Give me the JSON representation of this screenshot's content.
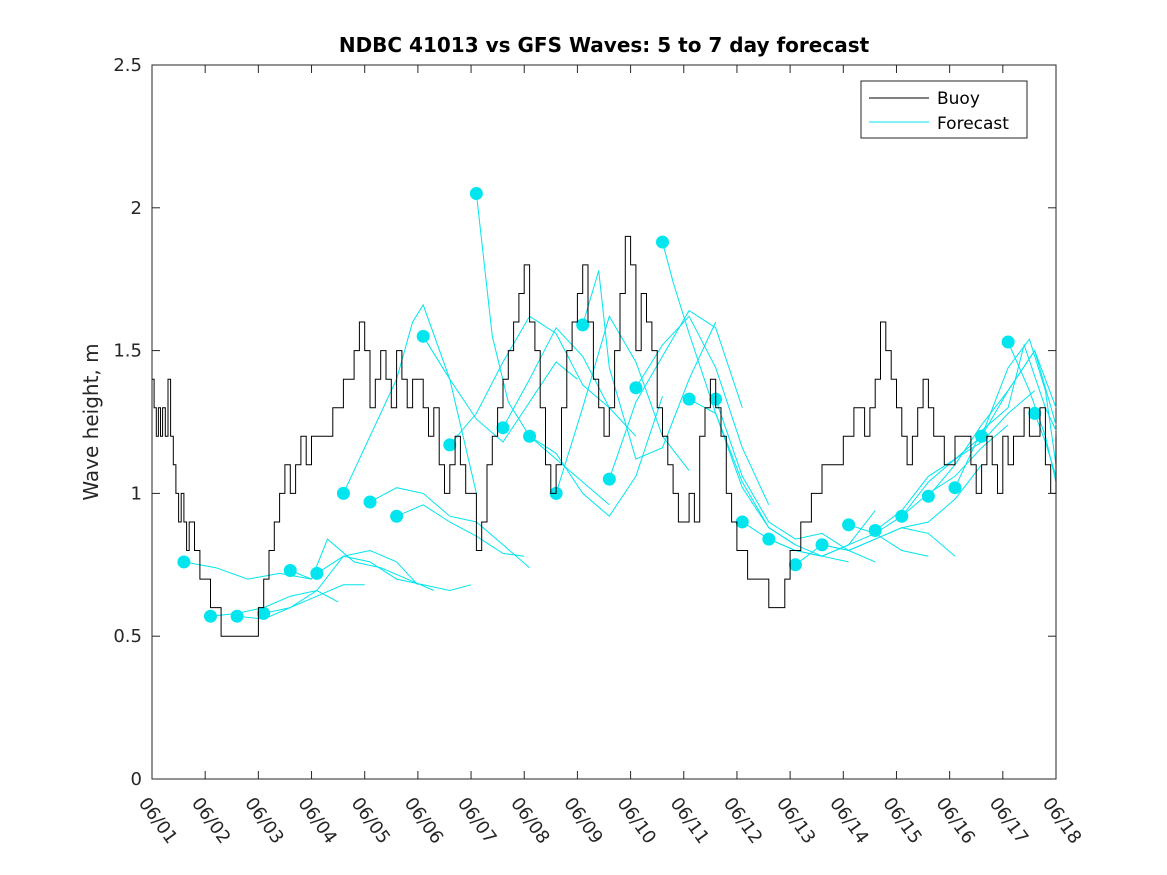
{
  "chart_data": {
    "type": "line",
    "title": "NDBC 41013 vs GFS Waves: 5 to 7 day forecast",
    "xlabel": "",
    "ylabel": "Wave height, m",
    "xlim": [
      0,
      17
    ],
    "ylim": [
      0,
      2.5
    ],
    "grid": false,
    "legend_position": "top-right",
    "x_ticks": [
      "06/01",
      "06/02",
      "06/03",
      "06/04",
      "06/05",
      "06/06",
      "06/07",
      "06/08",
      "06/09",
      "06/10",
      "06/11",
      "06/12",
      "06/13",
      "06/14",
      "06/15",
      "06/16",
      "06/17",
      "06/18"
    ],
    "y_ticks": [
      "0",
      "0.5",
      "1",
      "1.5",
      "2",
      "2.5"
    ],
    "y_tick_values": [
      0,
      0.5,
      1,
      1.5,
      2,
      2.5
    ],
    "colors": {
      "buoy": "#000000",
      "forecast": "#00e5ee"
    },
    "series": [
      {
        "name": "Buoy",
        "kind": "observed",
        "x": [
          0.0,
          0.04,
          0.08,
          0.12,
          0.16,
          0.2,
          0.25,
          0.3,
          0.35,
          0.4,
          0.45,
          0.5,
          0.55,
          0.6,
          0.65,
          0.7,
          0.8,
          0.9,
          1.0,
          1.1,
          1.2,
          1.3,
          1.4,
          1.5,
          1.6,
          1.7,
          1.8,
          1.9,
          2.0,
          2.1,
          2.2,
          2.3,
          2.4,
          2.5,
          2.6,
          2.7,
          2.8,
          2.9,
          3.0,
          3.2,
          3.4,
          3.6,
          3.8,
          3.9,
          4.0,
          4.1,
          4.2,
          4.3,
          4.4,
          4.5,
          4.6,
          4.7,
          4.8,
          4.9,
          5.0,
          5.1,
          5.2,
          5.3,
          5.4,
          5.5,
          5.6,
          5.7,
          5.8,
          5.9,
          6.0,
          6.1,
          6.2,
          6.3,
          6.4,
          6.5,
          6.6,
          6.7,
          6.8,
          6.9,
          7.0,
          7.1,
          7.2,
          7.3,
          7.4,
          7.5,
          7.6,
          7.7,
          7.8,
          7.9,
          8.0,
          8.1,
          8.2,
          8.3,
          8.4,
          8.5,
          8.6,
          8.7,
          8.8,
          8.9,
          9.0,
          9.1,
          9.2,
          9.3,
          9.4,
          9.5,
          9.6,
          9.7,
          9.8,
          9.9,
          10.0,
          10.1,
          10.2,
          10.3,
          10.4,
          10.5,
          10.6,
          10.7,
          10.8,
          10.9,
          11.0,
          11.1,
          11.2,
          11.3,
          11.4,
          11.5,
          11.6,
          11.7,
          11.8,
          11.9,
          12.0,
          12.2,
          12.4,
          12.6,
          12.8,
          13.0,
          13.2,
          13.4,
          13.5,
          13.6,
          13.7,
          13.8,
          13.9,
          14.0,
          14.1,
          14.2,
          14.3,
          14.4,
          14.5,
          14.6,
          14.7,
          14.8,
          14.9,
          15.0,
          15.1,
          15.2,
          15.3,
          15.4,
          15.5,
          15.6,
          15.7,
          15.8,
          15.9,
          16.0,
          16.1,
          16.2,
          16.3,
          16.4,
          16.5,
          16.6,
          16.7,
          16.8,
          16.9,
          17.0
        ],
        "values": [
          1.4,
          1.3,
          1.2,
          1.3,
          1.2,
          1.3,
          1.2,
          1.4,
          1.2,
          1.1,
          1.0,
          0.9,
          1.0,
          0.9,
          0.8,
          0.9,
          0.8,
          0.7,
          0.7,
          0.6,
          0.6,
          0.5,
          0.5,
          0.5,
          0.5,
          0.5,
          0.5,
          0.5,
          0.6,
          0.7,
          0.8,
          0.9,
          1.0,
          1.1,
          1.0,
          1.1,
          1.2,
          1.1,
          1.2,
          1.2,
          1.3,
          1.4,
          1.5,
          1.6,
          1.5,
          1.3,
          1.4,
          1.5,
          1.4,
          1.3,
          1.5,
          1.4,
          1.3,
          1.4,
          1.4,
          1.3,
          1.2,
          1.3,
          1.1,
          1.0,
          1.1,
          1.2,
          1.1,
          1.0,
          1.0,
          0.8,
          0.9,
          1.1,
          1.2,
          1.3,
          1.4,
          1.5,
          1.6,
          1.7,
          1.8,
          1.6,
          1.5,
          1.3,
          1.1,
          1.0,
          1.1,
          1.3,
          1.5,
          1.6,
          1.7,
          1.8,
          1.6,
          1.4,
          1.3,
          1.2,
          1.3,
          1.5,
          1.7,
          1.9,
          1.8,
          1.5,
          1.7,
          1.6,
          1.5,
          1.3,
          1.2,
          1.1,
          1.0,
          0.9,
          0.9,
          1.0,
          0.9,
          1.2,
          1.3,
          1.4,
          1.3,
          1.2,
          1.0,
          0.9,
          0.8,
          0.8,
          0.7,
          0.7,
          0.7,
          0.7,
          0.6,
          0.6,
          0.6,
          0.7,
          0.8,
          0.9,
          1.0,
          1.1,
          1.1,
          1.2,
          1.3,
          1.2,
          1.3,
          1.4,
          1.6,
          1.5,
          1.4,
          1.3,
          1.2,
          1.1,
          1.2,
          1.3,
          1.4,
          1.3,
          1.2,
          1.2,
          1.1,
          1.1,
          1.2,
          1.2,
          1.2,
          1.1,
          1.0,
          1.1,
          1.2,
          1.1,
          1.0,
          1.2,
          1.1,
          1.2,
          1.2,
          1.3,
          1.2,
          1.2,
          1.3,
          1.1,
          1.0,
          1.2
        ],
        "x_note_mirror": []
      }
    ],
    "forecast_runs": [
      {
        "x": [
          0.6,
          1.2,
          1.8,
          2.4,
          3.0
        ],
        "values": [
          0.76,
          0.74,
          0.7,
          0.72,
          0.7
        ]
      },
      {
        "x": [
          1.1,
          1.6,
          2.1,
          2.6,
          3.1,
          3.5
        ],
        "values": [
          0.57,
          0.58,
          0.6,
          0.64,
          0.66,
          0.62
        ]
      },
      {
        "x": [
          1.6,
          2.1,
          2.6,
          3.1,
          3.6,
          4.0
        ],
        "values": [
          0.57,
          0.56,
          0.6,
          0.64,
          0.68,
          0.68
        ]
      },
      {
        "x": [
          2.1,
          2.6,
          3.1,
          3.6,
          4.1,
          4.6,
          5.0
        ],
        "values": [
          0.58,
          0.6,
          0.66,
          0.78,
          0.8,
          0.76,
          0.68
        ]
      },
      {
        "x": [
          2.6,
          3.0,
          3.3,
          3.8,
          4.3,
          4.8,
          5.3
        ],
        "values": [
          0.73,
          0.7,
          0.84,
          0.76,
          0.74,
          0.7,
          0.66
        ]
      },
      {
        "x": [
          3.1,
          3.6,
          4.1,
          4.6,
          5.1,
          5.6,
          6.0
        ],
        "values": [
          0.72,
          0.78,
          0.76,
          0.7,
          0.68,
          0.66,
          0.68
        ]
      },
      {
        "x": [
          3.6,
          4.1,
          4.6,
          4.9,
          5.1,
          5.6,
          6.1
        ],
        "values": [
          1.0,
          1.2,
          1.4,
          1.6,
          1.66,
          1.4,
          1.0
        ]
      },
      {
        "x": [
          4.1,
          4.6,
          5.1,
          5.6,
          6.1,
          6.6,
          7.1
        ],
        "values": [
          0.97,
          1.02,
          1.0,
          0.92,
          0.9,
          0.82,
          0.74
        ]
      },
      {
        "x": [
          4.6,
          5.1,
          5.6,
          6.1,
          6.6,
          7.0
        ],
        "values": [
          0.92,
          0.96,
          0.9,
          0.85,
          0.79,
          0.78
        ]
      },
      {
        "x": [
          5.1,
          5.6,
          6.1,
          6.6,
          7.1,
          7.6,
          8.0
        ],
        "values": [
          1.55,
          1.4,
          1.26,
          1.18,
          1.32,
          1.46,
          1.4
        ]
      },
      {
        "x": [
          5.6,
          6.1,
          6.6,
          7.1,
          7.6,
          8.1,
          8.6
        ],
        "values": [
          1.17,
          1.28,
          1.46,
          1.62,
          1.56,
          1.38,
          1.3
        ]
      },
      {
        "x": [
          6.1,
          6.4,
          6.7,
          7.1,
          7.6,
          8.1,
          8.6
        ],
        "values": [
          2.05,
          1.55,
          1.32,
          1.2,
          1.12,
          1.04,
          0.96
        ]
      },
      {
        "x": [
          6.6,
          7.1,
          7.6,
          8.1,
          8.6,
          9.1
        ],
        "values": [
          1.23,
          1.4,
          1.58,
          1.48,
          1.3,
          1.2
        ]
      },
      {
        "x": [
          7.1,
          7.6,
          8.1,
          8.6,
          9.1,
          9.6
        ],
        "values": [
          1.2,
          1.14,
          1.0,
          0.92,
          1.06,
          1.34
        ]
      },
      {
        "x": [
          7.6,
          8.1,
          8.6,
          9.1,
          9.6,
          10.1
        ],
        "values": [
          1.0,
          1.3,
          1.62,
          1.46,
          1.2,
          1.08
        ]
      },
      {
        "x": [
          8.1,
          8.4,
          8.6,
          9.1,
          9.6,
          10.1,
          10.6
        ],
        "values": [
          1.59,
          1.78,
          1.44,
          1.12,
          1.16,
          1.4,
          1.6
        ]
      },
      {
        "x": [
          8.6,
          9.1,
          9.6,
          10.1,
          10.6,
          11.1
        ],
        "values": [
          1.05,
          1.32,
          1.48,
          1.64,
          1.58,
          1.3
        ]
      },
      {
        "x": [
          9.1,
          9.6,
          10.1,
          10.6,
          11.1,
          11.6
        ],
        "values": [
          1.37,
          1.52,
          1.62,
          1.44,
          1.16,
          0.96
        ]
      },
      {
        "x": [
          9.6,
          9.8,
          10.1,
          10.6,
          11.1,
          11.6,
          12.1
        ],
        "values": [
          1.88,
          1.74,
          1.56,
          1.28,
          1.02,
          0.88,
          0.82
        ]
      },
      {
        "x": [
          10.1,
          10.6,
          11.1,
          11.6,
          12.1,
          12.6,
          13.1
        ],
        "values": [
          1.33,
          1.28,
          1.04,
          0.88,
          0.82,
          0.78,
          0.76
        ]
      },
      {
        "x": [
          10.6,
          11.1,
          11.6,
          12.1,
          12.6,
          13.1,
          13.6
        ],
        "values": [
          1.33,
          1.06,
          0.9,
          0.84,
          0.86,
          0.8,
          0.76
        ]
      },
      {
        "x": [
          11.1,
          11.6,
          12.1,
          12.6,
          13.1,
          13.6
        ],
        "values": [
          0.9,
          0.84,
          0.8,
          0.78,
          0.82,
          0.94
        ]
      },
      {
        "x": [
          11.6,
          12.1,
          12.6,
          13.1,
          13.6,
          14.1,
          14.6
        ],
        "values": [
          0.84,
          0.8,
          0.78,
          0.82,
          0.86,
          0.8,
          0.78
        ]
      },
      {
        "x": [
          12.1,
          12.6,
          13.1,
          13.6,
          14.1,
          14.6,
          15.1
        ],
        "values": [
          0.75,
          0.82,
          0.8,
          0.84,
          0.88,
          0.86,
          0.78
        ]
      },
      {
        "x": [
          12.6,
          13.1,
          13.6,
          14.1,
          14.6,
          15.1,
          15.6
        ],
        "values": [
          0.82,
          0.8,
          0.84,
          0.88,
          0.9,
          0.98,
          1.1
        ]
      },
      {
        "x": [
          13.1,
          13.6,
          14.1,
          14.6,
          15.1,
          15.6,
          16.1
        ],
        "values": [
          0.89,
          0.86,
          0.92,
          1.0,
          1.06,
          1.16,
          1.24
        ]
      },
      {
        "x": [
          13.6,
          14.1,
          14.6,
          15.1,
          15.6,
          16.1,
          16.6
        ],
        "values": [
          0.87,
          0.94,
          1.06,
          1.12,
          1.18,
          1.28,
          1.36
        ]
      },
      {
        "x": [
          14.1,
          14.6,
          15.1,
          15.6,
          16.1,
          16.6,
          17.0
        ],
        "values": [
          0.92,
          1.04,
          1.12,
          1.2,
          1.36,
          1.5,
          1.3
        ]
      },
      {
        "x": [
          14.6,
          15.1,
          15.6,
          16.1,
          16.6,
          17.0
        ],
        "values": [
          0.99,
          1.1,
          1.24,
          1.36,
          1.5,
          1.24
        ]
      },
      {
        "x": [
          15.1,
          15.6,
          16.1,
          16.4,
          16.8,
          17.0
        ],
        "values": [
          1.02,
          1.22,
          1.3,
          1.52,
          1.3,
          1.22
        ]
      },
      {
        "x": [
          15.6,
          16.1,
          16.5,
          16.8,
          17.0
        ],
        "values": [
          1.2,
          1.44,
          1.54,
          1.36,
          1.1
        ]
      },
      {
        "x": [
          16.1,
          16.5,
          16.8,
          17.0
        ],
        "values": [
          1.53,
          1.36,
          1.2,
          1.04
        ]
      },
      {
        "x": [
          16.6,
          16.8,
          17.0
        ],
        "values": [
          1.28,
          1.18,
          1.06
        ]
      }
    ],
    "legend": [
      "Buoy",
      "Forecast"
    ]
  }
}
